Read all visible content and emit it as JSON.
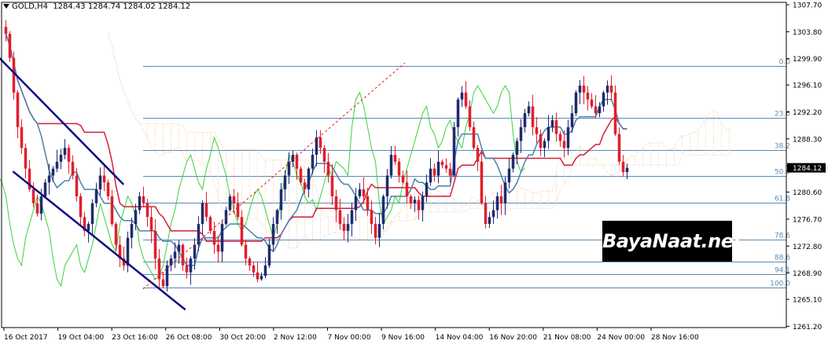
{
  "header": {
    "symbol": "GOLD,H4",
    "ohlc": "1284.43 1284.74 1284.02 1284.12"
  },
  "watermark": "BayaNaat.net",
  "colors": {
    "bull": "#1f2a6e",
    "bear": "#e01f2b",
    "kijun": "#d21f3a",
    "tenkan": "#4a7fb0",
    "chikou": "#3ad23a",
    "cloud": "#f0c89a",
    "channel": "#0d0d80",
    "fib": "#5b8ab4",
    "fanline": "#e02020",
    "price_label_bg": "#000000"
  },
  "chart_data": {
    "type": "candlestick",
    "symbol": "GOLD",
    "timeframe": "H4",
    "ylim": [
      1261.02,
      1307.7
    ],
    "y_ticks": [
      "1307.70",
      "1303.80",
      "1299.90",
      "1296.10",
      "1292.20",
      "1288.30",
      "1284.40",
      "1280.60",
      "1276.70",
      "1272.80",
      "1268.90",
      "1265.10",
      "1261.20"
    ],
    "x_ticks": [
      "16 Oct 2017",
      "19 Oct 04:00",
      "23 Oct 16:00",
      "26 Oct 08:00",
      "30 Oct 20:00",
      "2 Nov 12:00",
      "7 Nov 00:00",
      "9 Nov 16:00",
      "14 Nov 04:00",
      "16 Nov 20:00",
      "21 Nov 08:00",
      "24 Nov 00:00",
      "28 Nov 16:00"
    ],
    "current_price": "1284.12",
    "price_path": [
      1303.5,
      1300,
      1295,
      1290,
      1287,
      1284,
      1281,
      1279,
      1277.5,
      1280,
      1282,
      1283,
      1284,
      1285,
      1286,
      1287,
      1285,
      1283,
      1280,
      1277,
      1275,
      1276,
      1279,
      1281,
      1283,
      1282,
      1280,
      1276,
      1273,
      1271,
      1270,
      1274,
      1276,
      1278,
      1280,
      1279,
      1277,
      1275,
      1271,
      1268,
      1267,
      1270,
      1271,
      1272,
      1273,
      1270,
      1269,
      1271,
      1273,
      1276,
      1279,
      1277,
      1275,
      1273,
      1272,
      1276,
      1278,
      1280,
      1279,
      1277,
      1273,
      1271,
      1270,
      1269,
      1268,
      1268.5,
      1270,
      1273,
      1276,
      1278,
      1281,
      1283,
      1285,
      1286,
      1284,
      1282,
      1281,
      1284,
      1286,
      1288.5,
      1287,
      1285,
      1283,
      1280,
      1278,
      1276,
      1275,
      1276,
      1278,
      1280,
      1281,
      1280,
      1278,
      1276,
      1274,
      1276,
      1280,
      1283,
      1286,
      1285,
      1283,
      1282,
      1280,
      1279,
      1279.5,
      1278,
      1280,
      1282,
      1284,
      1283,
      1285,
      1284.5,
      1284,
      1283,
      1290,
      1294,
      1295,
      1293,
      1290,
      1287,
      1285,
      1279,
      1276,
      1277,
      1278,
      1280,
      1279,
      1282,
      1284,
      1286,
      1288,
      1290,
      1292,
      1293,
      1290,
      1289,
      1287,
      1288,
      1290,
      1291,
      1289,
      1288,
      1287,
      1290,
      1292,
      1295,
      1296,
      1295,
      1294,
      1293,
      1292,
      1293,
      1295,
      1296,
      1295,
      1289,
      1285,
      1283.5,
      1284.12
    ],
    "fibonacci": {
      "labels": [
        "0.0",
        "23.6",
        "38.2",
        "50.0",
        "61.8",
        "78.6",
        "88.6",
        "94.1",
        "100.0"
      ],
      "prices": [
        1298.8,
        1291.3,
        1286.7,
        1282.9,
        1279.1,
        1273.7,
        1270.6,
        1268.8,
        1266.8
      ]
    },
    "channel": {
      "upper": [
        [
          "23 Oct 16:00",
          1281.7
        ],
        [
          "29 Nov 08:00",
          1300.9
        ]
      ],
      "lower": [
        [
          "26 Oct 08:00",
          1263.6
        ],
        [
          "29 Nov 16:00",
          1283.6
        ]
      ]
    }
  }
}
